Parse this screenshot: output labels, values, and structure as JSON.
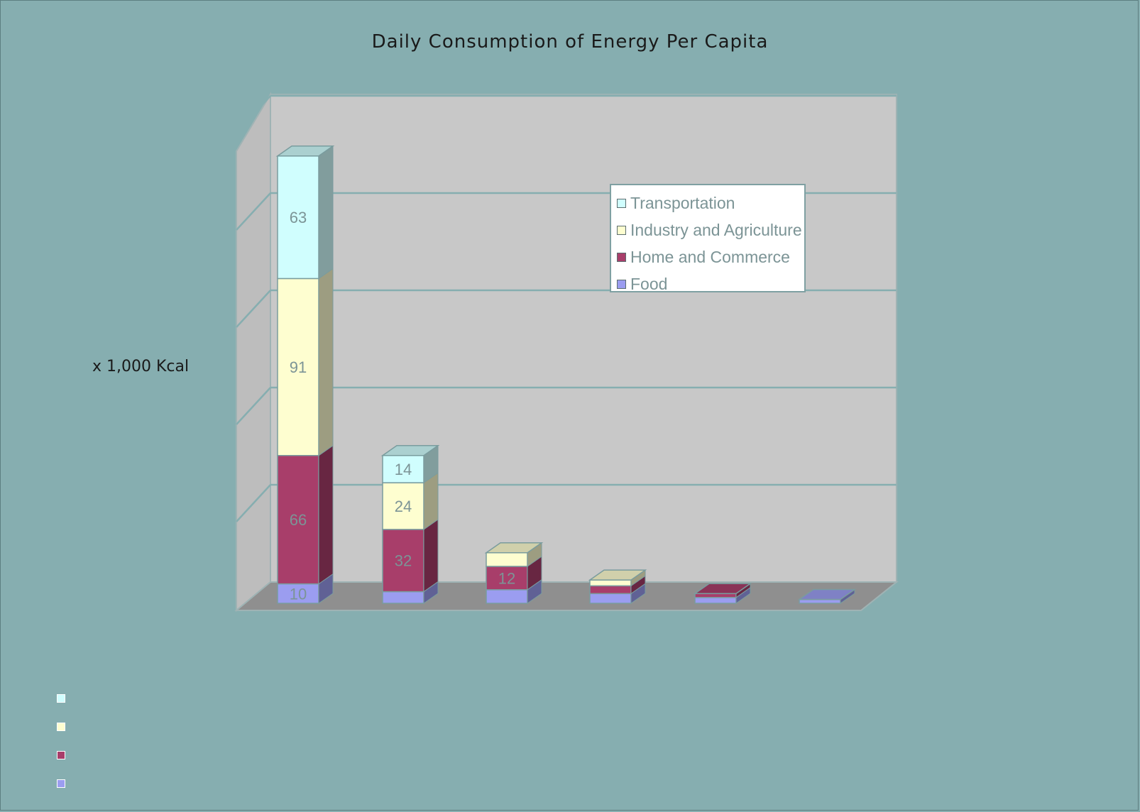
{
  "chart_data": {
    "type": "bar",
    "stacked": true,
    "three_d": true,
    "title": "Daily Consumption of Energy Per Capita",
    "ylabel": "x 1,000 Kcal",
    "xlabel": "",
    "categories": [
      "",
      "",
      "",
      "",
      "",
      ""
    ],
    "ylim": [
      0,
      250
    ],
    "grid": true,
    "legend_placement": "upper-right inside plot",
    "series": [
      {
        "name": "Food",
        "color": "#9b9df0",
        "values": [
          10,
          6,
          7,
          5,
          3,
          2
        ],
        "labels": [
          "10",
          "",
          "",
          "",
          "",
          ""
        ]
      },
      {
        "name": "Home and Commerce",
        "color": "#a83e6a",
        "values": [
          66,
          32,
          12,
          4,
          2,
          0
        ],
        "labels": [
          "66",
          "32",
          "12",
          "",
          "",
          ""
        ]
      },
      {
        "name": "Industry and Agriculture",
        "color": "#fefed0",
        "values": [
          91,
          24,
          7,
          3,
          0,
          0
        ],
        "labels": [
          "91",
          "24",
          "",
          "",
          "",
          ""
        ]
      },
      {
        "name": "Transportation",
        "color": "#d0fefe",
        "values": [
          63,
          14,
          0,
          0,
          0,
          0
        ],
        "labels": [
          "63",
          "14",
          "",
          "",
          "",
          ""
        ]
      }
    ]
  },
  "legend_order": [
    3,
    2,
    1,
    0
  ],
  "colors": {
    "background": "#86aeb0",
    "plot_back": "#c8c8c8",
    "plot_side": "#bdbdbd",
    "plot_floor": "#8f8f8f",
    "gridline": "#86aeb0",
    "label_text": "#7c9496"
  }
}
